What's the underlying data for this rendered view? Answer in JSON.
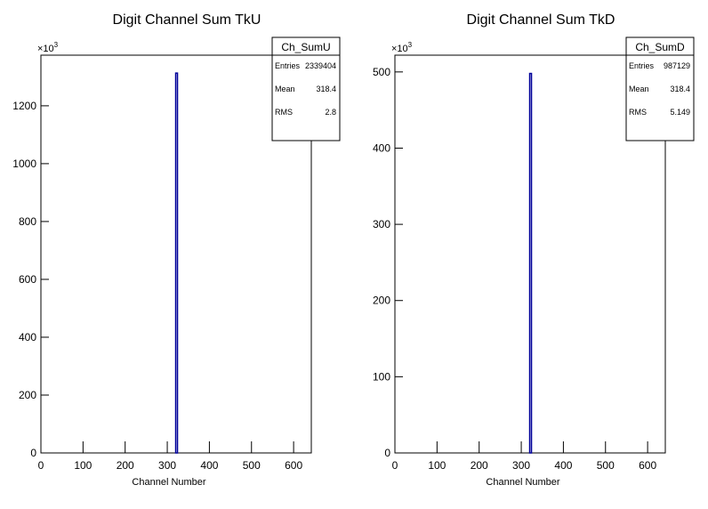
{
  "chart_data": [
    {
      "type": "histogram",
      "title": "Digit Channel Sum TkU",
      "x_label": "Channel Number",
      "y_multiplier": {
        "base": "×10",
        "exponent": "3"
      },
      "bins": [
        320,
        321
      ],
      "values": [
        1313
      ],
      "color": "#000099",
      "xlim": [
        0,
        642
      ],
      "xticks": [
        0,
        100,
        200,
        300,
        400,
        500,
        600
      ],
      "ylim": [
        0,
        1375
      ],
      "yticks": [
        0,
        200,
        400,
        600,
        800,
        1000,
        1200
      ],
      "stats": {
        "title": "Ch_SumU",
        "rows": [
          {
            "label": "Entries",
            "value": 2339404
          },
          {
            "label": "Mean",
            "value": 318.4
          },
          {
            "label": "RMS",
            "value": 2.8
          }
        ]
      }
    },
    {
      "type": "histogram",
      "title": "Digit Channel Sum TkD",
      "x_label": "Channel Number",
      "y_multiplier": {
        "base": "×10",
        "exponent": "3"
      },
      "bins": [
        320,
        321
      ],
      "values": [
        498
      ],
      "color": "#000099",
      "xlim": [
        0,
        642
      ],
      "xticks": [
        0,
        100,
        200,
        300,
        400,
        500,
        600
      ],
      "ylim": [
        0,
        522
      ],
      "yticks": [
        0,
        100,
        200,
        300,
        400,
        500
      ],
      "stats": {
        "title": "Ch_SumD",
        "rows": [
          {
            "label": "Entries",
            "value": 987129
          },
          {
            "label": "Mean",
            "value": 318.4
          },
          {
            "label": "RMS",
            "value": 5.149
          }
        ]
      }
    }
  ]
}
